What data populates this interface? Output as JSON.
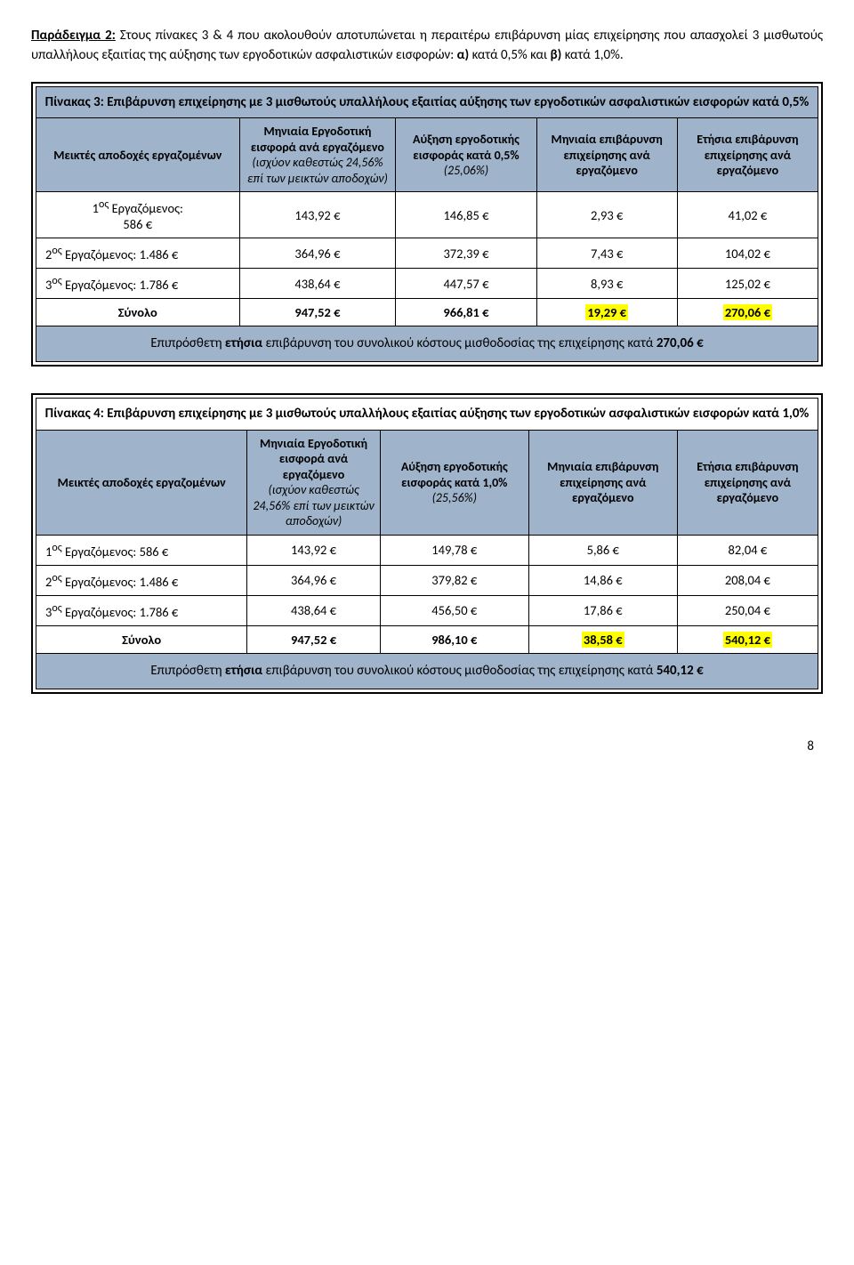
{
  "intro": {
    "label": "Παράδειγμα 2:",
    "rest": " Στους πίνακες 3 & 4 που ακολουθούν  αποτυπώνεται η περαιτέρω επιβάρυνση μίας επιχείρησης που απασχολεί 3 μισθωτούς υπαλλήλους εξαιτίας της αύξησης των εργοδοτικών ασφαλιστικών εισφορών: ",
    "a": "α)",
    "a_rest": " κατά 0,5% και ",
    "b": "β)",
    "b_rest": " κατά 1,0%."
  },
  "table3": {
    "title": "Πίνακας 3: Επιβάρυνση επιχείρησης με 3 μισθωτούς υπαλλήλους εξαιτίας αύξησης των εργοδοτικών ασφαλιστικών εισφορών κατά 0,5%",
    "headers": {
      "c1": "Μεικτές αποδοχές εργαζομένων",
      "c2_top": "Μηνιαία Εργοδοτική εισφορά ανά εργαζόμενο",
      "c2_italic": "(ισχύον καθεστώς 24,56% επί των μεικτών αποδοχών)",
      "c3_top": "Αύξηση εργοδοτικής εισφοράς κατά 0,5%",
      "c3_italic": "(25,06%)",
      "c4": "Μηνιαία επιβάρυνση επιχείρησης ανά εργαζόμενο",
      "c5": "Ετήσια επιβάρυνση επιχείρησης ανά εργαζόμενο"
    },
    "rows": [
      {
        "c1_a": "1",
        "c1_sup": "ος",
        "c1_b": " Εργαζόμενος:",
        "c1_line2": "586 €",
        "c2": "143,92 €",
        "c3": "146,85 €",
        "c4": "2,93 €",
        "c5": "41,02 €"
      },
      {
        "c1_a": "2",
        "c1_sup": "ος",
        "c1_b": " Εργαζόμενος: 1.486 €",
        "c1_line2": "",
        "c2": "364,96 €",
        "c3": "372,39 €",
        "c4": "7,43 €",
        "c5": "104,02 €"
      },
      {
        "c1_a": "3",
        "c1_sup": "ος",
        "c1_b": " Εργαζόμενος:  1.786 €",
        "c1_line2": "",
        "c2": "438,64 €",
        "c3": "447,57 €",
        "c4": "8,93 €",
        "c5": "125,02 €"
      }
    ],
    "sum": {
      "label": "Σύνολο",
      "c2": "947,52 €",
      "c3": "966,81 €",
      "c4": "19,29 €",
      "c5": "270,06 €"
    },
    "footer_a": "Επιπρόσθετη ",
    "footer_b": "ετήσια",
    "footer_c": " επιβάρυνση του συνολικού κόστους μισθοδοσίας της επιχείρησης κατά ",
    "footer_val": "270,06 €"
  },
  "table4": {
    "title": "Πίνακας 4: Επιβάρυνση επιχείρησης με 3 μισθωτούς υπαλλήλους εξαιτίας αύξησης των εργοδοτικών ασφαλιστικών εισφορών κατά 1,0%",
    "headers": {
      "c1": "Μεικτές αποδοχές εργαζομένων",
      "c2_top": "Μηνιαία Εργοδοτική εισφορά ανά εργαζόμενο",
      "c2_italic": "(ισχύον καθεστώς 24,56% επί των μεικτών αποδοχών)",
      "c3_top": "Αύξηση εργοδοτικής εισφοράς κατά 1,0%",
      "c3_italic": "(25,56%)",
      "c4": "Μηνιαία επιβάρυνση επιχείρησης ανά εργαζόμενο",
      "c5": "Ετήσια επιβάρυνση επιχείρησης ανά εργαζόμενο"
    },
    "rows": [
      {
        "c1_a": "1",
        "c1_sup": "ος",
        "c1_b": "  Εργαζόμενος:  586 €",
        "c2": "143,92 €",
        "c3": "149,78 €",
        "c4": "5,86 €",
        "c5": "82,04 €"
      },
      {
        "c1_a": "2",
        "c1_sup": "ος",
        "c1_b": "  Εργαζόμενος: 1.486 €",
        "c2": "364,96 €",
        "c3": "379,82 €",
        "c4": "14,86 €",
        "c5": "208,04 €"
      },
      {
        "c1_a": "3",
        "c1_sup": "ος",
        "c1_b": "  Εργαζόμενος:  1.786 €",
        "c2": "438,64 €",
        "c3": "456,50 €",
        "c4": "17,86 €",
        "c5": "250,04 €"
      }
    ],
    "sum": {
      "label": "Σύνολο",
      "c2": "947,52 €",
      "c3": "986,10 €",
      "c4": "38,58 €",
      "c5": "540,12 €"
    },
    "footer_a": "Επιπρόσθετη ",
    "footer_b": "ετήσια",
    "footer_c": " επιβάρυνση του συνολικού κόστους μισθοδοσίας της επιχείρησης κατά ",
    "footer_val": "540,12 €"
  },
  "page_number": "8",
  "colors": {
    "header_bg": "#9fb4cb",
    "highlight": "#ffff00",
    "border": "#000000",
    "text": "#000000",
    "page_bg": "#ffffff"
  }
}
